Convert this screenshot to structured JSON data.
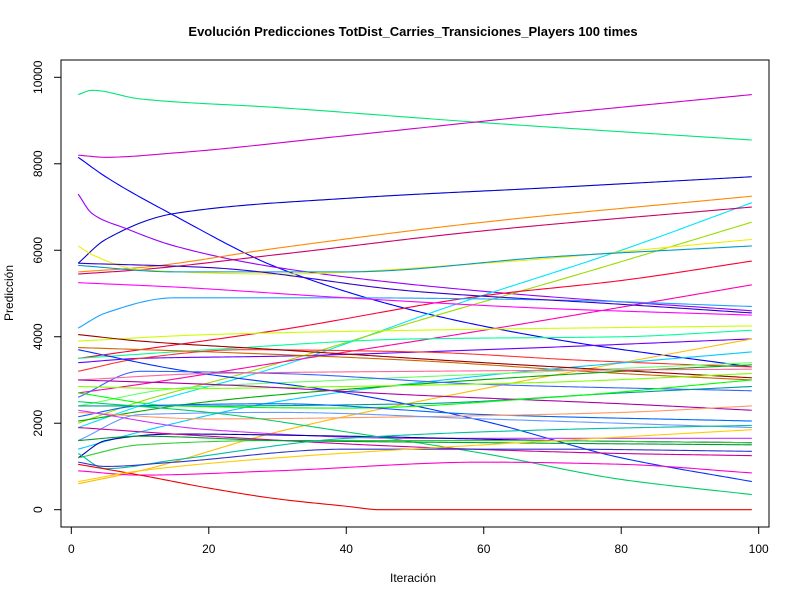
{
  "chart_data": {
    "type": "line",
    "title": "Evolución Predicciones TotDist_Carries_Transiciones_Players 100 times",
    "xlabel": "Iteración",
    "ylabel": "Predicción",
    "xlim": [
      -1.5,
      101.5
    ],
    "ylim": [
      -400,
      10400
    ],
    "x_ticks": [
      0,
      20,
      40,
      60,
      80,
      100
    ],
    "y_ticks": [
      0,
      2000,
      4000,
      6000,
      8000,
      10000
    ],
    "grid": false,
    "legend": "none",
    "x_range": [
      1,
      99
    ],
    "series": [
      {
        "color": "#00e676",
        "points": [
          [
            1,
            9600
          ],
          [
            3,
            9700
          ],
          [
            10,
            9500
          ],
          [
            30,
            9300
          ],
          [
            60,
            8950
          ],
          [
            99,
            8550
          ]
        ]
      },
      {
        "color": "#cc00cc",
        "points": [
          [
            1,
            8200
          ],
          [
            5,
            8150
          ],
          [
            15,
            8250
          ],
          [
            40,
            8650
          ],
          [
            70,
            9150
          ],
          [
            99,
            9600
          ]
        ]
      },
      {
        "color": "#0000cc",
        "points": [
          [
            1,
            5700
          ],
          [
            5,
            6250
          ],
          [
            15,
            6850
          ],
          [
            40,
            7200
          ],
          [
            70,
            7450
          ],
          [
            99,
            7700
          ]
        ]
      },
      {
        "color": "#0000ff",
        "points": [
          [
            1,
            8150
          ],
          [
            5,
            7700
          ],
          [
            15,
            6800
          ],
          [
            30,
            5600
          ],
          [
            50,
            4600
          ],
          [
            70,
            3950
          ],
          [
            99,
            3300
          ]
        ]
      },
      {
        "color": "#9900ff",
        "points": [
          [
            1,
            7300
          ],
          [
            3,
            6850
          ],
          [
            8,
            6500
          ],
          [
            15,
            6100
          ],
          [
            30,
            5600
          ],
          [
            60,
            5050
          ],
          [
            99,
            4600
          ]
        ]
      },
      {
        "color": "#ff8800",
        "points": [
          [
            1,
            5500
          ],
          [
            10,
            5600
          ],
          [
            30,
            6050
          ],
          [
            60,
            6650
          ],
          [
            99,
            7250
          ]
        ]
      },
      {
        "color": "#00e5ff",
        "points": [
          [
            1,
            1900
          ],
          [
            10,
            2400
          ],
          [
            30,
            3300
          ],
          [
            55,
            4700
          ],
          [
            80,
            6000
          ],
          [
            99,
            7100
          ]
        ]
      },
      {
        "color": "#cc0066",
        "points": [
          [
            1,
            5450
          ],
          [
            10,
            5550
          ],
          [
            30,
            5900
          ],
          [
            60,
            6450
          ],
          [
            99,
            7000
          ]
        ]
      },
      {
        "color": "#99dd00",
        "points": [
          [
            1,
            2000
          ],
          [
            10,
            2500
          ],
          [
            25,
            3150
          ],
          [
            50,
            4350
          ],
          [
            75,
            5500
          ],
          [
            99,
            6650
          ]
        ]
      },
      {
        "color": "#eeee00",
        "points": [
          [
            1,
            6100
          ],
          [
            3,
            5900
          ],
          [
            10,
            5550
          ],
          [
            30,
            5450
          ],
          [
            60,
            5700
          ],
          [
            99,
            6250
          ]
        ]
      },
      {
        "color": "#0099cc",
        "points": [
          [
            1,
            5650
          ],
          [
            15,
            5500
          ],
          [
            40,
            5500
          ],
          [
            70,
            5850
          ],
          [
            99,
            6100
          ]
        ]
      },
      {
        "color": "#ff0033",
        "points": [
          [
            1,
            3500
          ],
          [
            10,
            3700
          ],
          [
            30,
            4150
          ],
          [
            60,
            4950
          ],
          [
            80,
            5300
          ],
          [
            99,
            5750
          ]
        ]
      },
      {
        "color": "#ff00aa",
        "points": [
          [
            1,
            2700
          ],
          [
            10,
            2900
          ],
          [
            30,
            3400
          ],
          [
            60,
            4150
          ],
          [
            99,
            5200
          ]
        ]
      },
      {
        "color": "#1ea1ff",
        "points": [
          [
            1,
            4200
          ],
          [
            5,
            4550
          ],
          [
            15,
            4900
          ],
          [
            40,
            4900
          ],
          [
            70,
            4850
          ],
          [
            99,
            4700
          ]
        ]
      },
      {
        "color": "#3300cc",
        "points": [
          [
            1,
            5700
          ],
          [
            20,
            5600
          ],
          [
            50,
            5050
          ],
          [
            80,
            4750
          ],
          [
            99,
            4550
          ]
        ]
      },
      {
        "color": "#6600ff",
        "points": [
          [
            1,
            3400
          ],
          [
            10,
            3500
          ],
          [
            30,
            3550
          ],
          [
            60,
            3700
          ],
          [
            99,
            3950
          ]
        ]
      },
      {
        "color": "#ff00ff",
        "points": [
          [
            1,
            5250
          ],
          [
            15,
            5150
          ],
          [
            40,
            4900
          ],
          [
            70,
            4650
          ],
          [
            99,
            4500
          ]
        ]
      },
      {
        "color": "#ccff00",
        "points": [
          [
            1,
            3900
          ],
          [
            20,
            4050
          ],
          [
            50,
            4150
          ],
          [
            99,
            4250
          ]
        ]
      },
      {
        "color": "#00ff99",
        "points": [
          [
            1,
            3500
          ],
          [
            20,
            3700
          ],
          [
            50,
            3950
          ],
          [
            80,
            4000
          ],
          [
            99,
            4150
          ]
        ]
      },
      {
        "color": "#cc6600",
        "points": [
          [
            1,
            3750
          ],
          [
            20,
            3650
          ],
          [
            50,
            3450
          ],
          [
            80,
            3150
          ],
          [
            99,
            3000
          ]
        ]
      },
      {
        "color": "#ffbb00",
        "points": [
          [
            1,
            600
          ],
          [
            10,
            900
          ],
          [
            30,
            1800
          ],
          [
            60,
            2800
          ],
          [
            99,
            3950
          ]
        ]
      },
      {
        "color": "#ff3333",
        "points": [
          [
            1,
            3200
          ],
          [
            10,
            3500
          ],
          [
            25,
            3700
          ],
          [
            50,
            3650
          ],
          [
            75,
            3450
          ],
          [
            99,
            3300
          ]
        ]
      },
      {
        "color": "#00ccff",
        "points": [
          [
            1,
            1400
          ],
          [
            10,
            1800
          ],
          [
            30,
            2500
          ],
          [
            60,
            3100
          ],
          [
            99,
            3650
          ]
        ]
      },
      {
        "color": "#66ff66",
        "points": [
          [
            1,
            2400
          ],
          [
            15,
            2800
          ],
          [
            40,
            3000
          ],
          [
            70,
            3200
          ],
          [
            99,
            3400
          ]
        ]
      },
      {
        "color": "#0033ff",
        "points": [
          [
            1,
            3700
          ],
          [
            15,
            3250
          ],
          [
            40,
            2700
          ],
          [
            60,
            2050
          ],
          [
            80,
            1200
          ],
          [
            99,
            650
          ]
        ]
      },
      {
        "color": "#00aa00",
        "points": [
          [
            1,
            2050
          ],
          [
            20,
            2500
          ],
          [
            50,
            2900
          ],
          [
            80,
            3200
          ],
          [
            99,
            3350
          ]
        ]
      },
      {
        "color": "#990000",
        "points": [
          [
            1,
            4050
          ],
          [
            10,
            3900
          ],
          [
            30,
            3700
          ],
          [
            60,
            3400
          ],
          [
            99,
            3050
          ]
        ]
      },
      {
        "color": "#3366ff",
        "points": [
          [
            1,
            2600
          ],
          [
            10,
            3200
          ],
          [
            30,
            3150
          ],
          [
            60,
            2900
          ],
          [
            99,
            2750
          ]
        ]
      },
      {
        "color": "#ff6699",
        "points": [
          [
            1,
            3000
          ],
          [
            20,
            3150
          ],
          [
            50,
            3200
          ],
          [
            99,
            3250
          ]
        ]
      },
      {
        "color": "#7fff00",
        "points": [
          [
            1,
            2850
          ],
          [
            15,
            2800
          ],
          [
            40,
            2850
          ],
          [
            70,
            2950
          ],
          [
            99,
            3150
          ]
        ]
      },
      {
        "color": "#009999",
        "points": [
          [
            1,
            2400
          ],
          [
            20,
            2400
          ],
          [
            50,
            2450
          ],
          [
            80,
            2700
          ],
          [
            99,
            2850
          ]
        ]
      },
      {
        "color": "#aa00aa",
        "points": [
          [
            1,
            3000
          ],
          [
            20,
            2900
          ],
          [
            50,
            2650
          ],
          [
            80,
            2450
          ],
          [
            99,
            2300
          ]
        ]
      },
      {
        "color": "#00ff00",
        "points": [
          [
            1,
            2700
          ],
          [
            15,
            2400
          ],
          [
            40,
            2350
          ],
          [
            70,
            2600
          ],
          [
            99,
            3000
          ]
        ]
      },
      {
        "color": "#0066ff",
        "points": [
          [
            1,
            2150
          ],
          [
            10,
            2400
          ],
          [
            30,
            2450
          ],
          [
            60,
            2200
          ],
          [
            99,
            2050
          ]
        ]
      },
      {
        "color": "#ff9966",
        "points": [
          [
            1,
            2250
          ],
          [
            20,
            2100
          ],
          [
            50,
            2150
          ],
          [
            80,
            2250
          ],
          [
            99,
            2400
          ]
        ]
      },
      {
        "color": "#6699ff",
        "points": [
          [
            1,
            1600
          ],
          [
            10,
            2200
          ],
          [
            30,
            2250
          ],
          [
            60,
            2100
          ],
          [
            99,
            1900
          ]
        ]
      },
      {
        "color": "#cc33ff",
        "points": [
          [
            1,
            2300
          ],
          [
            20,
            1850
          ],
          [
            50,
            1650
          ],
          [
            80,
            1650
          ],
          [
            99,
            1650
          ]
        ]
      },
      {
        "color": "#00cc66",
        "points": [
          [
            1,
            2500
          ],
          [
            20,
            2250
          ],
          [
            40,
            1800
          ],
          [
            60,
            1300
          ],
          [
            80,
            700
          ],
          [
            99,
            350
          ]
        ]
      },
      {
        "color": "#0000aa",
        "points": [
          [
            1,
            1200
          ],
          [
            5,
            1600
          ],
          [
            15,
            1750
          ],
          [
            40,
            1700
          ],
          [
            70,
            1600
          ],
          [
            99,
            1550
          ]
        ]
      },
      {
        "color": "#33cc33",
        "points": [
          [
            1,
            1200
          ],
          [
            10,
            1500
          ],
          [
            30,
            1600
          ],
          [
            60,
            1600
          ],
          [
            99,
            1550
          ]
        ]
      },
      {
        "color": "#cc0099",
        "points": [
          [
            1,
            1900
          ],
          [
            20,
            1700
          ],
          [
            50,
            1450
          ],
          [
            80,
            1300
          ],
          [
            99,
            1250
          ]
        ]
      },
      {
        "color": "#009933",
        "points": [
          [
            1,
            1600
          ],
          [
            10,
            1700
          ],
          [
            30,
            1600
          ],
          [
            60,
            1550
          ],
          [
            99,
            1500
          ]
        ]
      },
      {
        "color": "#00bfa5",
        "points": [
          [
            1,
            1300
          ],
          [
            5,
            950
          ],
          [
            15,
            1150
          ],
          [
            40,
            1650
          ],
          [
            70,
            1850
          ],
          [
            99,
            1950
          ]
        ]
      },
      {
        "color": "#ff00cc",
        "points": [
          [
            1,
            900
          ],
          [
            10,
            800
          ],
          [
            30,
            900
          ],
          [
            60,
            1100
          ],
          [
            80,
            1050
          ],
          [
            99,
            850
          ]
        ]
      },
      {
        "color": "#3333cc",
        "points": [
          [
            1,
            1100
          ],
          [
            5,
            1000
          ],
          [
            15,
            1100
          ],
          [
            40,
            1400
          ],
          [
            70,
            1400
          ],
          [
            99,
            1350
          ]
        ]
      },
      {
        "color": "#ee0000",
        "points": [
          [
            1,
            1050
          ],
          [
            10,
            800
          ],
          [
            20,
            500
          ],
          [
            30,
            250
          ],
          [
            40,
            80
          ],
          [
            45,
            0
          ],
          [
            99,
            0
          ]
        ]
      },
      {
        "color": "#ffcc00",
        "points": [
          [
            1,
            650
          ],
          [
            10,
            900
          ],
          [
            30,
            1200
          ],
          [
            60,
            1500
          ],
          [
            99,
            1850
          ]
        ]
      }
    ]
  }
}
